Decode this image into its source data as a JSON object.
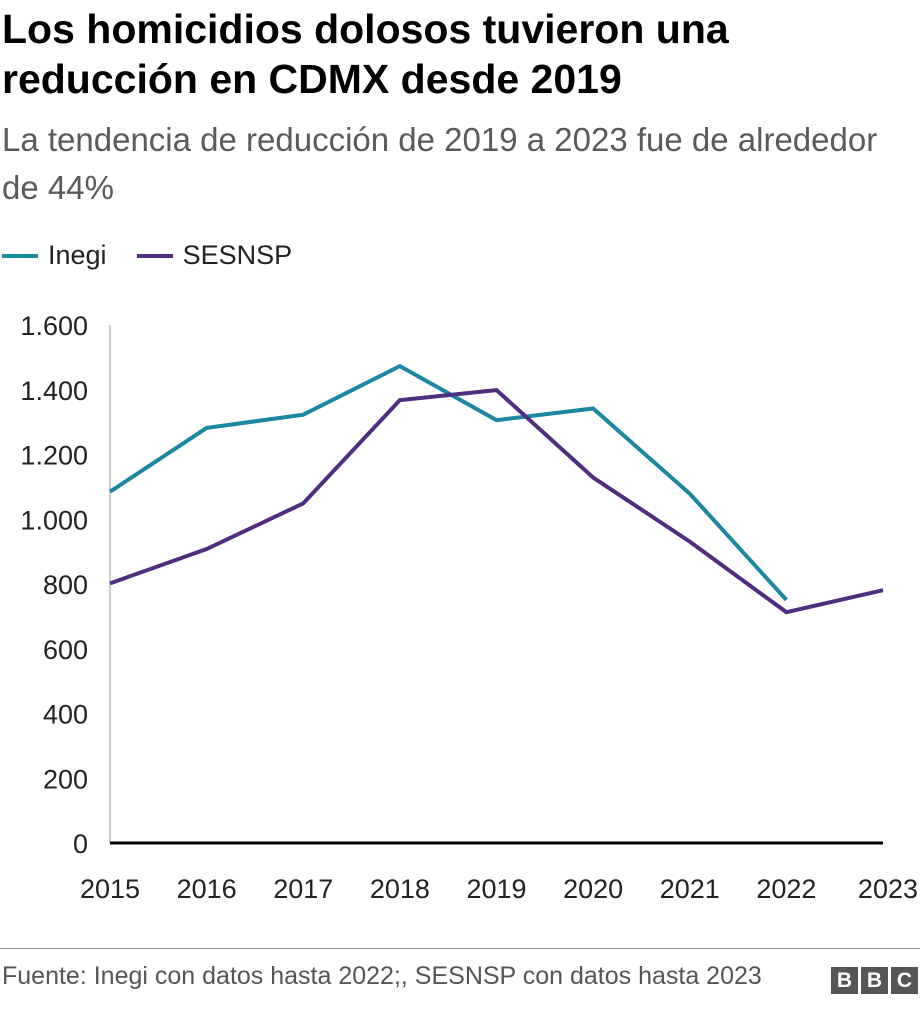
{
  "chart_data": {
    "type": "line",
    "title": "Los homicidios dolosos tuvieron una reducción en CDMX desde 2019",
    "subtitle": "La tendencia de reducción de 2019 a 2023 fue de alrededor de 44%",
    "x": [
      "2015",
      "2016",
      "2017",
      "2018",
      "2019",
      "2020",
      "2021",
      "2022",
      "2023"
    ],
    "series": [
      {
        "name": "Inegi",
        "color": "#1b87a0",
        "values": [
          1085,
          1282,
          1323,
          1473,
          1306,
          1342,
          1079,
          751,
          null
        ]
      },
      {
        "name": "SESNSP",
        "color": "#4f2d7f",
        "values": [
          802,
          908,
          1049,
          1368,
          1399,
          1129,
          931,
          713,
          781
        ]
      }
    ],
    "yticks": [
      0,
      200,
      400,
      600,
      800,
      1000,
      1200,
      1400,
      1600
    ],
    "ytick_labels": [
      "0",
      "200",
      "400",
      "600",
      "800",
      "1.000",
      "1.200",
      "1.400",
      "1.600"
    ],
    "ylim": [
      0,
      1600
    ],
    "xlabel": "",
    "ylabel": "",
    "grid": false,
    "legend": "top-left"
  },
  "footer": {
    "source": "Fuente: Inegi con datos hasta 2022;, SESNSP con datos hasta 2023",
    "logo": [
      "B",
      "B",
      "C"
    ]
  }
}
